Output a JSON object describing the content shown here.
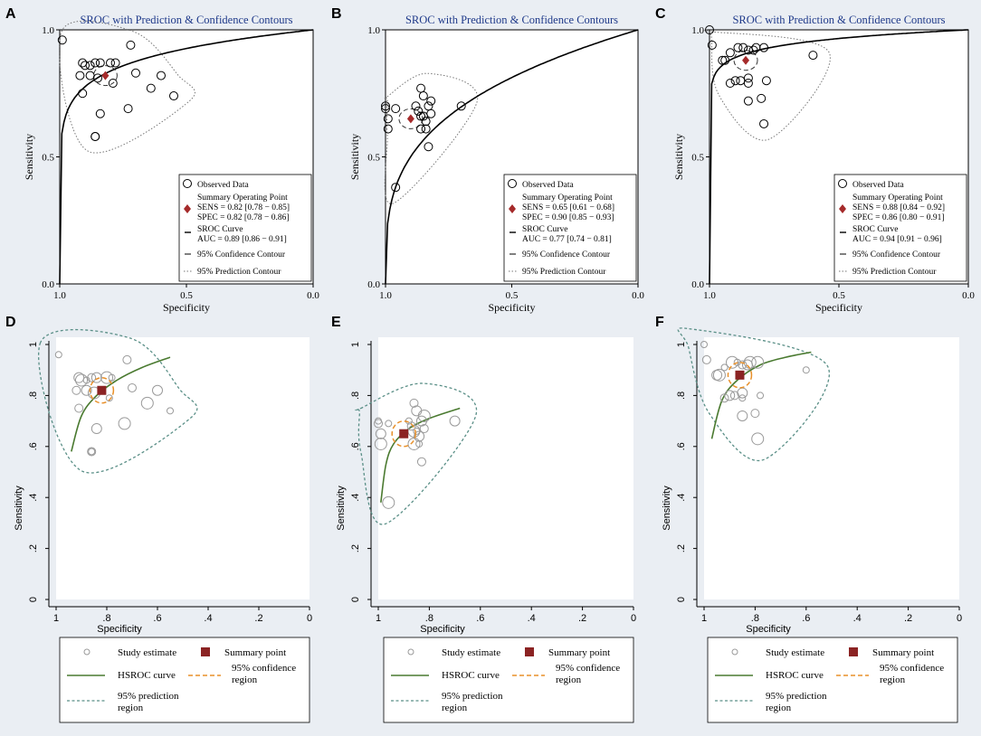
{
  "colors": {
    "background": "#eaeef3",
    "sroc_title": "#1f3a8a",
    "summary_diamond": "#a52a2a",
    "summary_square": "#8b2323",
    "hsroc_curve": "#4a7a30",
    "confidence_region": "#e8902a",
    "prediction_region": "#5a8f87",
    "study_marker": "#9a9a9a"
  },
  "chart_data": [
    {
      "panel": "A",
      "type": "scatter",
      "title": "SROC with Prediction & Confidence Contours",
      "xlabel": "Specificity",
      "ylabel": "Sensitivity",
      "xlim": [
        1.0,
        0.0
      ],
      "ylim": [
        0.0,
        1.0
      ],
      "xticks": [
        "1.0",
        "0.5",
        "0.0"
      ],
      "yticks": [
        "0.0",
        "0.5",
        "1.0"
      ],
      "points": [
        [
          0.99,
          0.96
        ],
        [
          0.72,
          0.94
        ],
        [
          0.91,
          0.87
        ],
        [
          0.9,
          0.86
        ],
        [
          0.88,
          0.86
        ],
        [
          0.86,
          0.87
        ],
        [
          0.84,
          0.87
        ],
        [
          0.8,
          0.87
        ],
        [
          0.78,
          0.87
        ],
        [
          0.92,
          0.82
        ],
        [
          0.88,
          0.82
        ],
        [
          0.85,
          0.81
        ],
        [
          0.79,
          0.79
        ],
        [
          0.7,
          0.83
        ],
        [
          0.6,
          0.82
        ],
        [
          0.64,
          0.77
        ],
        [
          0.55,
          0.74
        ],
        [
          0.91,
          0.75
        ],
        [
          0.84,
          0.67
        ],
        [
          0.73,
          0.69
        ],
        [
          0.86,
          0.58
        ],
        [
          0.86,
          0.58
        ]
      ],
      "summary_point": [
        0.82,
        0.82
      ],
      "auc": 0.89,
      "sroc_exponent": 0.11,
      "legend": {
        "observed": "Observed Data",
        "summary_heading": "Summary Operating Point",
        "sens": "SENS = 0.82 [0.78 − 0.85]",
        "spec": "SPEC = 0.82 [0.78 − 0.86]",
        "curve_heading": "SROC Curve",
        "auc": "AUC = 0.89 [0.86 − 0.91]",
        "conf": "95% Confidence Contour",
        "pred": "95% Prediction Contour"
      }
    },
    {
      "panel": "B",
      "type": "scatter",
      "title": "SROC with Prediction & Confidence Contours",
      "xlabel": "Specificity",
      "ylabel": "Sensitivity",
      "xlim": [
        1.0,
        0.0
      ],
      "ylim": [
        0.0,
        1.0
      ],
      "xticks": [
        "1.0",
        "0.5",
        "0.0"
      ],
      "yticks": [
        "0.0",
        "0.5",
        "1.0"
      ],
      "points": [
        [
          1.0,
          0.7
        ],
        [
          1.0,
          0.69
        ],
        [
          0.99,
          0.65
        ],
        [
          0.99,
          0.61
        ],
        [
          0.96,
          0.69
        ],
        [
          0.86,
          0.77
        ],
        [
          0.85,
          0.74
        ],
        [
          0.82,
          0.72
        ],
        [
          0.88,
          0.7
        ],
        [
          0.87,
          0.68
        ],
        [
          0.83,
          0.7
        ],
        [
          0.86,
          0.66
        ],
        [
          0.85,
          0.66
        ],
        [
          0.82,
          0.67
        ],
        [
          0.84,
          0.64
        ],
        [
          0.86,
          0.61
        ],
        [
          0.84,
          0.61
        ],
        [
          0.83,
          0.54
        ],
        [
          0.7,
          0.7
        ],
        [
          0.96,
          0.38
        ]
      ],
      "summary_point": [
        0.9,
        0.65
      ],
      "auc": 0.77,
      "sroc_exponent": 0.3,
      "legend": {
        "observed": "Observed Data",
        "summary_heading": "Summary Operating Point",
        "sens": "SENS = 0.65 [0.61 − 0.68]",
        "spec": "SPEC = 0.90 [0.85 − 0.93]",
        "curve_heading": "SROC Curve",
        "auc": "AUC = 0.77 [0.74 − 0.81]",
        "conf": "95% Confidence Contour",
        "pred": "95% Prediction Contour"
      }
    },
    {
      "panel": "C",
      "type": "scatter",
      "title": "SROC with Prediction & Confidence Contours",
      "xlabel": "Specificity",
      "ylabel": "Sensitivity",
      "xlim": [
        1.0,
        0.0
      ],
      "ylim": [
        0.0,
        1.0
      ],
      "xticks": [
        "1.0",
        "0.5",
        "0.0"
      ],
      "yticks": [
        "0.0",
        "0.5",
        "1.0"
      ],
      "points": [
        [
          1.0,
          1.0
        ],
        [
          0.99,
          0.94
        ],
        [
          0.95,
          0.88
        ],
        [
          0.94,
          0.88
        ],
        [
          0.92,
          0.91
        ],
        [
          0.92,
          0.79
        ],
        [
          0.9,
          0.8
        ],
        [
          0.89,
          0.93
        ],
        [
          0.87,
          0.93
        ],
        [
          0.85,
          0.92
        ],
        [
          0.83,
          0.92
        ],
        [
          0.82,
          0.93
        ],
        [
          0.85,
          0.79
        ],
        [
          0.88,
          0.8
        ],
        [
          0.85,
          0.81
        ],
        [
          0.79,
          0.93
        ],
        [
          0.78,
          0.8
        ],
        [
          0.8,
          0.73
        ],
        [
          0.85,
          0.72
        ],
        [
          0.79,
          0.63
        ],
        [
          0.6,
          0.9
        ]
      ],
      "summary_point": [
        0.86,
        0.88
      ],
      "auc": 0.94,
      "sroc_exponent": 0.05,
      "legend": {
        "observed": "Observed Data",
        "summary_heading": "Summary Operating Point",
        "sens": "SENS = 0.88 [0.84 − 0.92]",
        "spec": "SPEC = 0.86 [0.80 − 0.91]",
        "curve_heading": "SROC Curve",
        "auc": "AUC = 0.94 [0.91 − 0.96]",
        "conf": "95% Confidence Contour",
        "pred": "95% Prediction Contour"
      }
    },
    {
      "panel": "D",
      "type": "scatter",
      "xlabel": "Specificity",
      "ylabel": "Sensitivity",
      "xlim": [
        1.0,
        0.0
      ],
      "ylim": [
        0.0,
        1.0
      ],
      "xticks": [
        "1",
        ".8",
        ".6",
        ".4",
        ".2",
        "0"
      ],
      "yticks": [
        "0",
        ".2",
        ".4",
        ".6",
        ".8",
        "1"
      ],
      "points": [
        [
          0.99,
          0.96
        ],
        [
          0.72,
          0.94
        ],
        [
          0.91,
          0.87
        ],
        [
          0.9,
          0.86
        ],
        [
          0.88,
          0.86
        ],
        [
          0.86,
          0.87
        ],
        [
          0.84,
          0.87
        ],
        [
          0.8,
          0.87
        ],
        [
          0.78,
          0.87
        ],
        [
          0.92,
          0.82
        ],
        [
          0.88,
          0.82
        ],
        [
          0.85,
          0.81
        ],
        [
          0.79,
          0.79
        ],
        [
          0.7,
          0.83
        ],
        [
          0.6,
          0.82
        ],
        [
          0.64,
          0.77
        ],
        [
          0.55,
          0.74
        ],
        [
          0.91,
          0.75
        ],
        [
          0.84,
          0.67
        ],
        [
          0.73,
          0.69
        ],
        [
          0.86,
          0.58
        ],
        [
          0.86,
          0.58
        ]
      ],
      "summary_point": [
        0.82,
        0.82
      ],
      "hsroc": [
        [
          0.94,
          0.58
        ],
        [
          0.9,
          0.72
        ],
        [
          0.84,
          0.8
        ],
        [
          0.76,
          0.86
        ],
        [
          0.66,
          0.91
        ],
        [
          0.55,
          0.95
        ]
      ],
      "legend": {
        "study": "Study estimate",
        "summary": "Summary point",
        "hsroc": "HSROC curve",
        "conf1": "95% confidence",
        "conf2": "region",
        "pred1": "95% prediction",
        "pred2": "region"
      }
    },
    {
      "panel": "E",
      "type": "scatter",
      "xlabel": "Specificity",
      "ylabel": "Sensitivity",
      "xlim": [
        1.0,
        0.0
      ],
      "ylim": [
        0.0,
        1.0
      ],
      "xticks": [
        "1",
        ".8",
        ".6",
        ".4",
        ".2",
        "0"
      ],
      "yticks": [
        "0",
        ".2",
        ".4",
        ".6",
        ".8",
        "1"
      ],
      "points": [
        [
          1.0,
          0.7
        ],
        [
          1.0,
          0.69
        ],
        [
          0.99,
          0.65
        ],
        [
          0.99,
          0.61
        ],
        [
          0.96,
          0.69
        ],
        [
          0.86,
          0.77
        ],
        [
          0.85,
          0.74
        ],
        [
          0.82,
          0.72
        ],
        [
          0.88,
          0.7
        ],
        [
          0.87,
          0.68
        ],
        [
          0.83,
          0.7
        ],
        [
          0.86,
          0.66
        ],
        [
          0.85,
          0.66
        ],
        [
          0.82,
          0.67
        ],
        [
          0.84,
          0.64
        ],
        [
          0.86,
          0.61
        ],
        [
          0.84,
          0.61
        ],
        [
          0.83,
          0.54
        ],
        [
          0.7,
          0.7
        ],
        [
          0.96,
          0.38
        ]
      ],
      "summary_point": [
        0.9,
        0.65
      ],
      "hsroc": [
        [
          0.99,
          0.38
        ],
        [
          0.97,
          0.53
        ],
        [
          0.94,
          0.61
        ],
        [
          0.88,
          0.67
        ],
        [
          0.8,
          0.71
        ],
        [
          0.68,
          0.75
        ]
      ],
      "legend": {
        "study": "Study estimate",
        "summary": "Summary point",
        "hsroc": "HSROC curve",
        "conf1": "95% confidence",
        "conf2": "region",
        "pred1": "95% prediction",
        "pred2": "region"
      }
    },
    {
      "panel": "F",
      "type": "scatter",
      "xlabel": "Specificity",
      "ylabel": "Sensitivity",
      "xlim": [
        1.0,
        0.0
      ],
      "ylim": [
        0.0,
        1.0
      ],
      "xticks": [
        "1",
        ".8",
        ".6",
        ".4",
        ".2",
        "0"
      ],
      "yticks": [
        "0",
        ".2",
        ".4",
        ".6",
        ".8",
        "1"
      ],
      "points": [
        [
          1.0,
          1.0
        ],
        [
          0.99,
          0.94
        ],
        [
          0.95,
          0.88
        ],
        [
          0.94,
          0.88
        ],
        [
          0.92,
          0.91
        ],
        [
          0.92,
          0.79
        ],
        [
          0.9,
          0.8
        ],
        [
          0.89,
          0.93
        ],
        [
          0.87,
          0.93
        ],
        [
          0.85,
          0.92
        ],
        [
          0.83,
          0.92
        ],
        [
          0.82,
          0.93
        ],
        [
          0.85,
          0.79
        ],
        [
          0.88,
          0.8
        ],
        [
          0.85,
          0.81
        ],
        [
          0.79,
          0.93
        ],
        [
          0.78,
          0.8
        ],
        [
          0.8,
          0.73
        ],
        [
          0.85,
          0.72
        ],
        [
          0.79,
          0.63
        ],
        [
          0.6,
          0.9
        ]
      ],
      "summary_point": [
        0.86,
        0.88
      ],
      "hsroc": [
        [
          0.97,
          0.63
        ],
        [
          0.93,
          0.78
        ],
        [
          0.87,
          0.86
        ],
        [
          0.78,
          0.92
        ],
        [
          0.68,
          0.95
        ],
        [
          0.58,
          0.97
        ]
      ],
      "legend": {
        "study": "Study estimate",
        "summary": "Summary point",
        "hsroc": "HSROC curve",
        "conf1": "95% confidence",
        "conf2": "region",
        "pred1": "95% prediction",
        "pred2": "region"
      }
    }
  ]
}
